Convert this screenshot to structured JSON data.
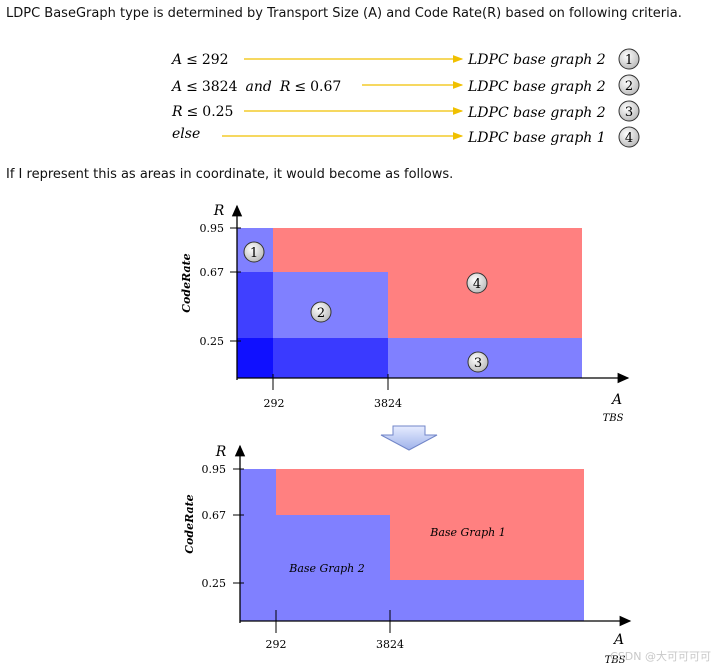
{
  "intro_text": "LDPC BaseGraph type is determined by Transport Size (A) and Code Rate(R)  based on following criteria.",
  "criteria": [
    {
      "cond_var1": "A",
      "cond_op1": "≤",
      "cond_val1": "292",
      "target": "LDPC base graph 2",
      "number": "1"
    },
    {
      "cond_var1": "A",
      "cond_op1": "≤",
      "cond_val1": "3824",
      "joiner": "and",
      "cond_var2": "R",
      "cond_op2": "≤",
      "cond_val2": "0.67",
      "target": "LDPC base graph 2",
      "number": "2"
    },
    {
      "cond_var1": "R",
      "cond_op1": "≤",
      "cond_val1": "0.25",
      "target": "LDPC base graph 2",
      "number": "3"
    },
    {
      "cond_var1": "else",
      "target": "LDPC base graph 1",
      "number": "4"
    }
  ],
  "para2": "If I represent this as areas in coordinate, it would become as follows.",
  "diagram_top": {
    "y_axis_letter": "R",
    "y_axis_title": "CodeRate",
    "x_axis_letter": "A",
    "x_axis_title": "TBS",
    "y_ticks": [
      "0.95",
      "0.67",
      "0.25"
    ],
    "x_ticks": [
      "292",
      "3824"
    ],
    "region_labels": [
      "1",
      "2",
      "3",
      "4"
    ]
  },
  "diagram_bottom": {
    "y_axis_letter": "R",
    "y_axis_title": "CodeRate",
    "x_axis_letter": "A",
    "x_axis_title": "TBS",
    "y_ticks": [
      "0.95",
      "0.67",
      "0.25"
    ],
    "x_ticks": [
      "292",
      "3824"
    ],
    "bg1_label": "Base Graph 1",
    "bg2_label": "Base Graph 2"
  },
  "colors": {
    "red": "#ff8080",
    "blue_light": "#8080ff",
    "blue_mid": "#4040ff",
    "blue_dark": "#1010ff",
    "arrow": "#f0c000"
  },
  "watermark": "CSDN @大可可可可"
}
